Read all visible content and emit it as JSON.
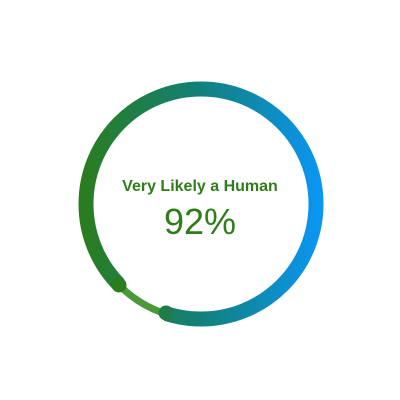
{
  "meter": {
    "label": "Very Likely a Human",
    "value_text": "92%",
    "progress_fraction": 0.92,
    "colors": {
      "text": "#2e7d1a",
      "gradient_start": "#2a7d1c",
      "gradient_mid": "#12807a",
      "gradient_end": "#0a96f5",
      "gap_tail": "#4a9a3a"
    }
  }
}
